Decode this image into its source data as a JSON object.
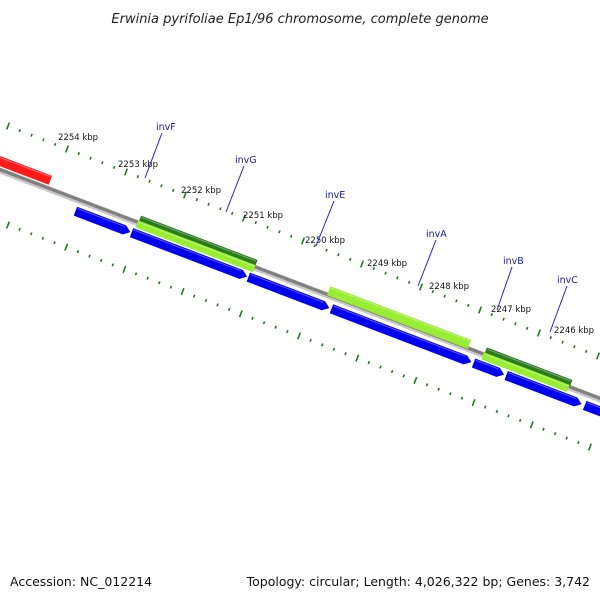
{
  "title": "Erwinia pyrifoliae Ep1/96 chromosome, complete genome",
  "footer": {
    "accession": "Accession: NC_012214",
    "summary": "Topology: circular; Length: 4,026,322 bp; Genes: 3,742"
  },
  "colors": {
    "backbone": "#808080",
    "ruler_ticks": "#1f7a1f",
    "cds_forward": "#0000ee",
    "cds_reverse": "#ff1a1a",
    "feature_light_green": "#99ee33",
    "feature_dark_green": "#2a7a1e",
    "gene_label": "#1a1aa0"
  },
  "ruler": {
    "unit": "kbp",
    "labels": [
      "2254 kbp",
      "2253 kbp",
      "2252 kbp",
      "2251 kbp",
      "2250 kbp",
      "2249 kbp",
      "2248 kbp",
      "2247 kbp",
      "2246 kbp"
    ]
  },
  "gene_labels": [
    "invF",
    "invG",
    "invE",
    "invA",
    "invB",
    "invC"
  ]
}
